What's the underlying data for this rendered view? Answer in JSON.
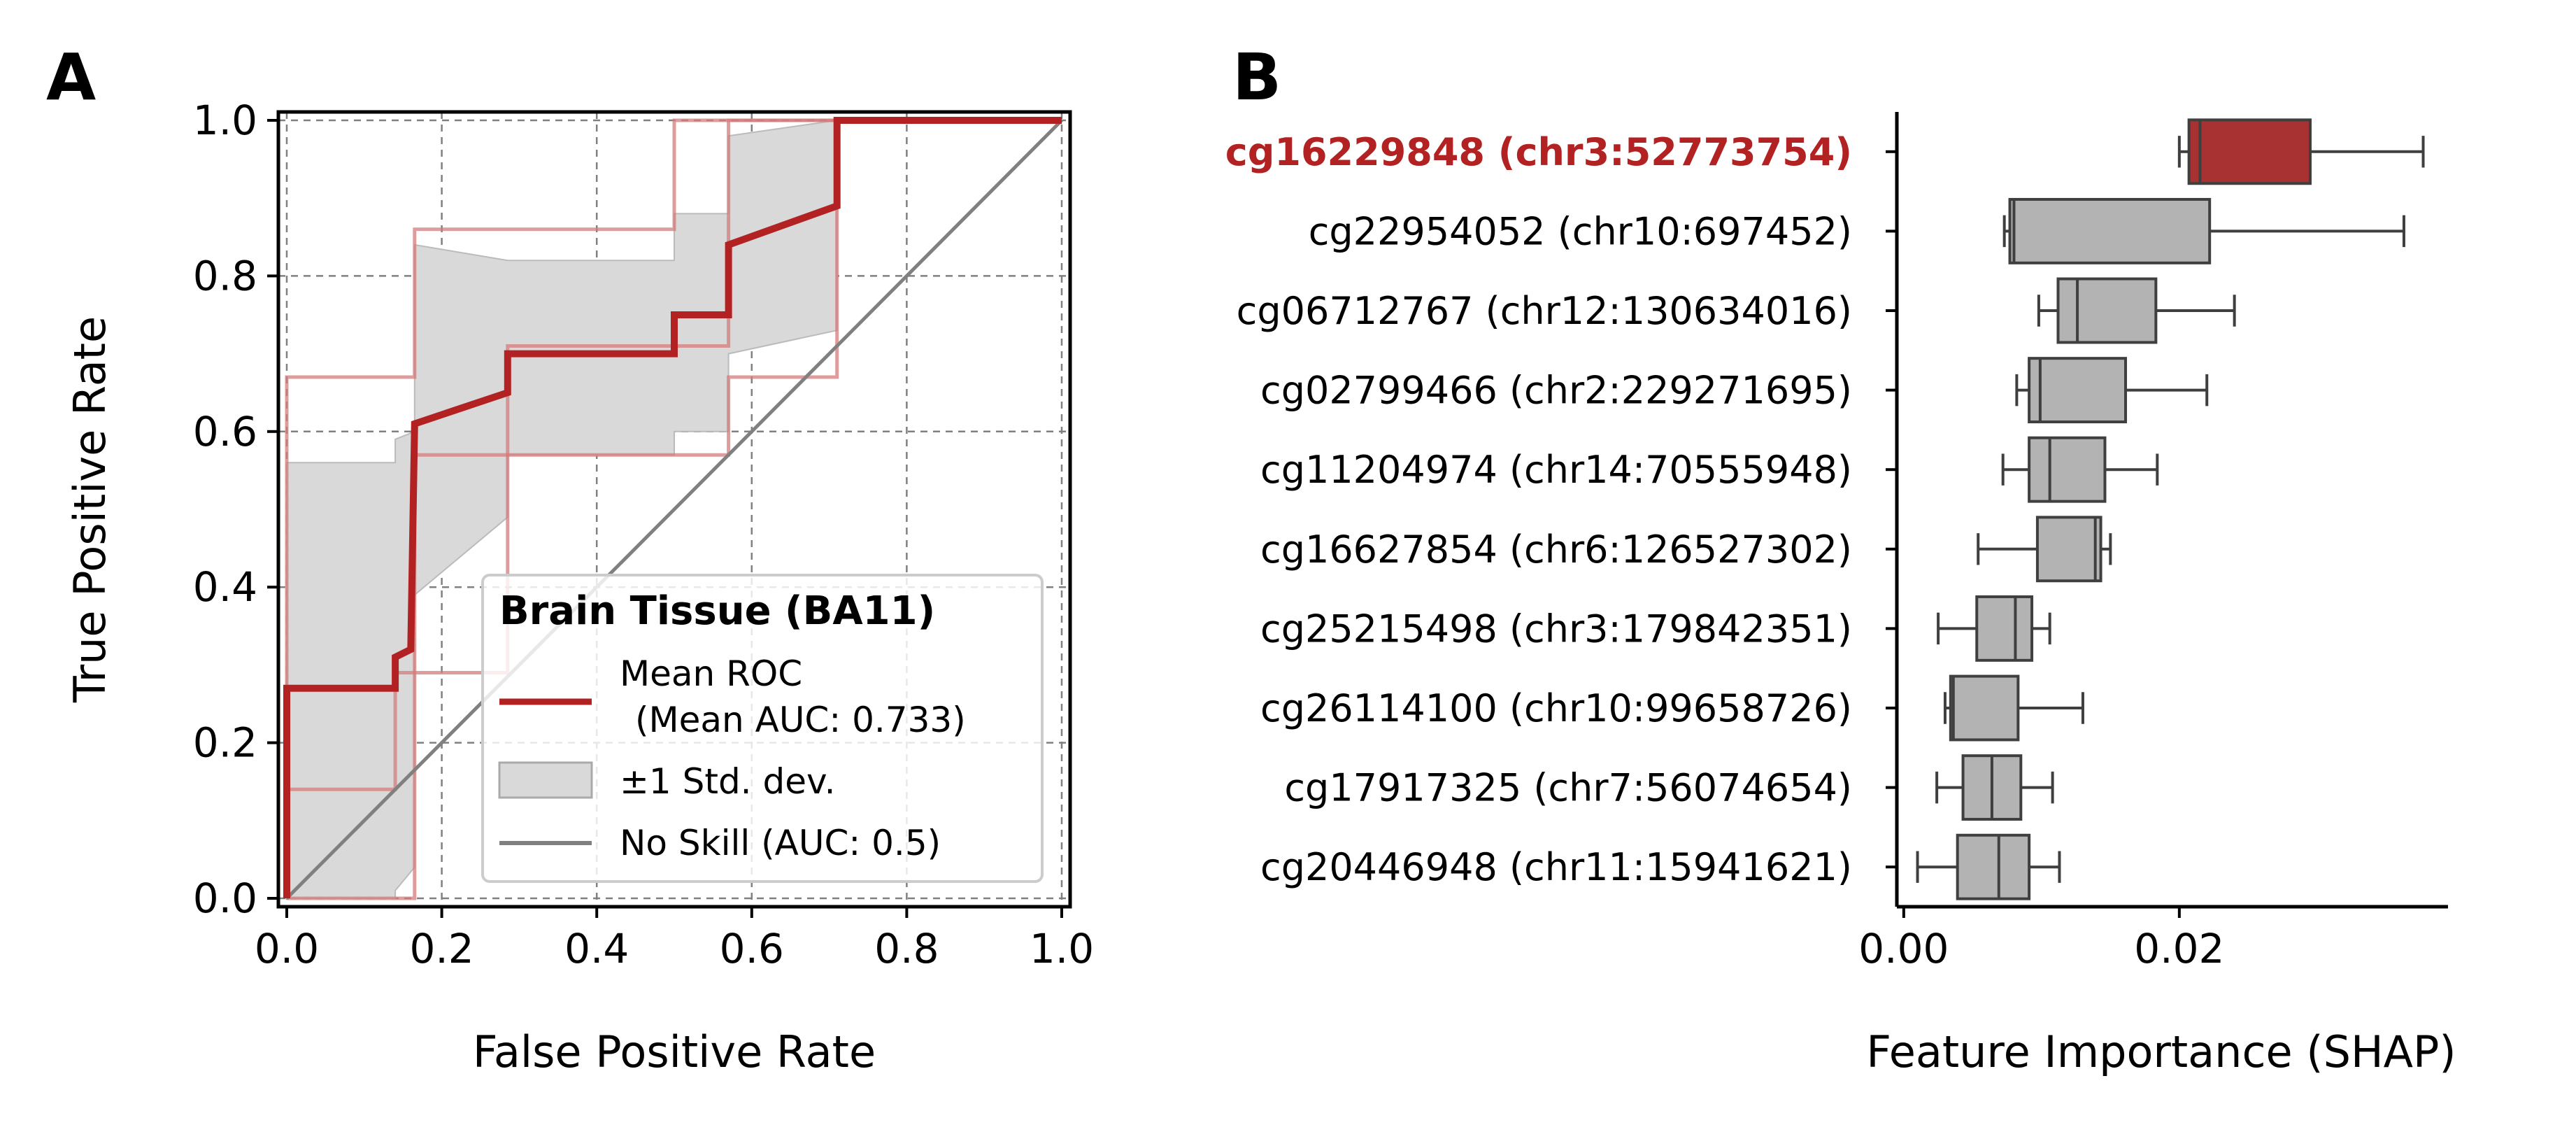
{
  "figure": {
    "panel_a_letter": "A",
    "panel_b_letter": "B"
  },
  "colors": {
    "mean_roc": "#b22222",
    "fold_roc": "#d47b7b",
    "std_band": "#d9d9d9",
    "no_skill": "#808080",
    "box_fill": "#b3b3b3",
    "box_highlight": "#a83232",
    "highlight_label": "#b22222"
  },
  "chart_data": [
    {
      "type": "line",
      "panel": "A",
      "title": "",
      "xlabel": "False Positive Rate",
      "ylabel": "True Positive Rate",
      "xlim": [
        0.0,
        1.0
      ],
      "ylim": [
        0.0,
        1.0
      ],
      "xticks": [
        "0.0",
        "0.2",
        "0.4",
        "0.6",
        "0.8",
        "1.0"
      ],
      "yticks": [
        "0.0",
        "0.2",
        "0.4",
        "0.6",
        "0.8",
        "1.0"
      ],
      "grid": true,
      "legend_placement": "lower-right",
      "legend_title": "Brain Tissue (BA11)",
      "legend": {
        "mean_line1": "Mean ROC",
        "mean_line2": "(Mean AUC: 0.733)",
        "std": "±1 Std. dev.",
        "no_skill": "No Skill (AUC: 0.5)"
      },
      "mean_roc": [
        [
          0,
          0
        ],
        [
          0,
          0.27
        ],
        [
          0.14,
          0.27
        ],
        [
          0.14,
          0.31
        ],
        [
          0.16,
          0.32
        ],
        [
          0.165,
          0.61
        ],
        [
          0.285,
          0.65
        ],
        [
          0.285,
          0.7
        ],
        [
          0.5,
          0.7
        ],
        [
          0.5,
          0.75
        ],
        [
          0.57,
          0.75
        ],
        [
          0.57,
          0.84
        ],
        [
          0.71,
          0.89
        ],
        [
          0.71,
          1.0
        ],
        [
          1.0,
          1.0
        ]
      ],
      "std_upper": [
        [
          0,
          0
        ],
        [
          0,
          0.56
        ],
        [
          0.14,
          0.56
        ],
        [
          0.14,
          0.59
        ],
        [
          0.165,
          0.6
        ],
        [
          0.165,
          0.84
        ],
        [
          0.285,
          0.82
        ],
        [
          0.285,
          0.82
        ],
        [
          0.5,
          0.82
        ],
        [
          0.5,
          0.88
        ],
        [
          0.57,
          0.88
        ],
        [
          0.57,
          0.98
        ],
        [
          0.71,
          1.0
        ],
        [
          1.0,
          1.0
        ]
      ],
      "std_lower": [
        [
          0,
          0
        ],
        [
          0.14,
          0
        ],
        [
          0.14,
          0.01
        ],
        [
          0.165,
          0.04
        ],
        [
          0.165,
          0.39
        ],
        [
          0.285,
          0.49
        ],
        [
          0.285,
          0.57
        ],
        [
          0.5,
          0.57
        ],
        [
          0.5,
          0.6
        ],
        [
          0.57,
          0.6
        ],
        [
          0.57,
          0.7
        ],
        [
          0.71,
          0.73
        ],
        [
          0.71,
          1.0
        ],
        [
          1.0,
          1.0
        ]
      ],
      "fold_curves": [
        [
          [
            0,
            0
          ],
          [
            0,
            0.67
          ],
          [
            0.165,
            0.67
          ],
          [
            0.165,
            0.86
          ],
          [
            0.5,
            0.86
          ],
          [
            0.5,
            1.0
          ],
          [
            1.0,
            1.0
          ]
        ],
        [
          [
            0,
            0
          ],
          [
            0,
            0.14
          ],
          [
            0.14,
            0.14
          ],
          [
            0.14,
            0.29
          ],
          [
            0.285,
            0.29
          ],
          [
            0.285,
            0.57
          ],
          [
            0.57,
            0.57
          ],
          [
            0.57,
            0.67
          ],
          [
            0.71,
            0.67
          ],
          [
            0.71,
            1.0
          ],
          [
            1.0,
            1.0
          ]
        ],
        [
          [
            0,
            0
          ],
          [
            0.165,
            0
          ],
          [
            0.165,
            0.57
          ],
          [
            0.285,
            0.57
          ],
          [
            0.285,
            0.71
          ],
          [
            0.57,
            0.71
          ],
          [
            0.57,
            1.0
          ],
          [
            1.0,
            1.0
          ]
        ]
      ],
      "no_skill": [
        [
          0,
          0
        ],
        [
          1,
          1
        ]
      ]
    },
    {
      "type": "box",
      "panel": "B",
      "title": "",
      "xlabel": "Feature Importance (SHAP)",
      "ylabel": "",
      "xlim": [
        -0.0005,
        0.0395
      ],
      "xticks": [
        0.0,
        0.02
      ],
      "xtick_labels": [
        "0.00",
        "0.02"
      ],
      "grid": false,
      "highlight_index": 0,
      "features": [
        {
          "label": "cg16229848 (chr3:52773754)",
          "whisker_low": 0.02,
          "q1": 0.0207,
          "median": 0.0215,
          "q3": 0.0295,
          "whisker_high": 0.0377
        },
        {
          "label": "cg22954052 (chr10:697452)",
          "whisker_low": 0.0073,
          "q1": 0.0077,
          "median": 0.008,
          "q3": 0.0222,
          "whisker_high": 0.0363
        },
        {
          "label": "cg06712767 (chr12:130634016)",
          "whisker_low": 0.0098,
          "q1": 0.0112,
          "median": 0.0126,
          "q3": 0.0183,
          "whisker_high": 0.024
        },
        {
          "label": "cg02799466 (chr2:229271695)",
          "whisker_low": 0.0082,
          "q1": 0.0091,
          "median": 0.0099,
          "q3": 0.0161,
          "whisker_high": 0.022
        },
        {
          "label": "cg11204974 (chr14:70555948)",
          "whisker_low": 0.0072,
          "q1": 0.0091,
          "median": 0.0106,
          "q3": 0.0146,
          "whisker_high": 0.0184
        },
        {
          "label": "cg16627854 (chr6:126527302)",
          "whisker_low": 0.0054,
          "q1": 0.0097,
          "median": 0.0139,
          "q3": 0.0143,
          "whisker_high": 0.015
        },
        {
          "label": "cg25215498 (chr3:179842351)",
          "whisker_low": 0.0025,
          "q1": 0.0053,
          "median": 0.0081,
          "q3": 0.0093,
          "whisker_high": 0.0106
        },
        {
          "label": "cg26114100 (chr10:99658726)",
          "whisker_low": 0.003,
          "q1": 0.0034,
          "median": 0.0036,
          "q3": 0.0083,
          "whisker_high": 0.013
        },
        {
          "label": "cg17917325 (chr7:56074654)",
          "whisker_low": 0.0024,
          "q1": 0.0043,
          "median": 0.0064,
          "q3": 0.0085,
          "whisker_high": 0.0108
        },
        {
          "label": "cg20446948 (chr11:15941621)",
          "whisker_low": 0.001,
          "q1": 0.0039,
          "median": 0.0069,
          "q3": 0.0091,
          "whisker_high": 0.0113
        }
      ]
    }
  ]
}
